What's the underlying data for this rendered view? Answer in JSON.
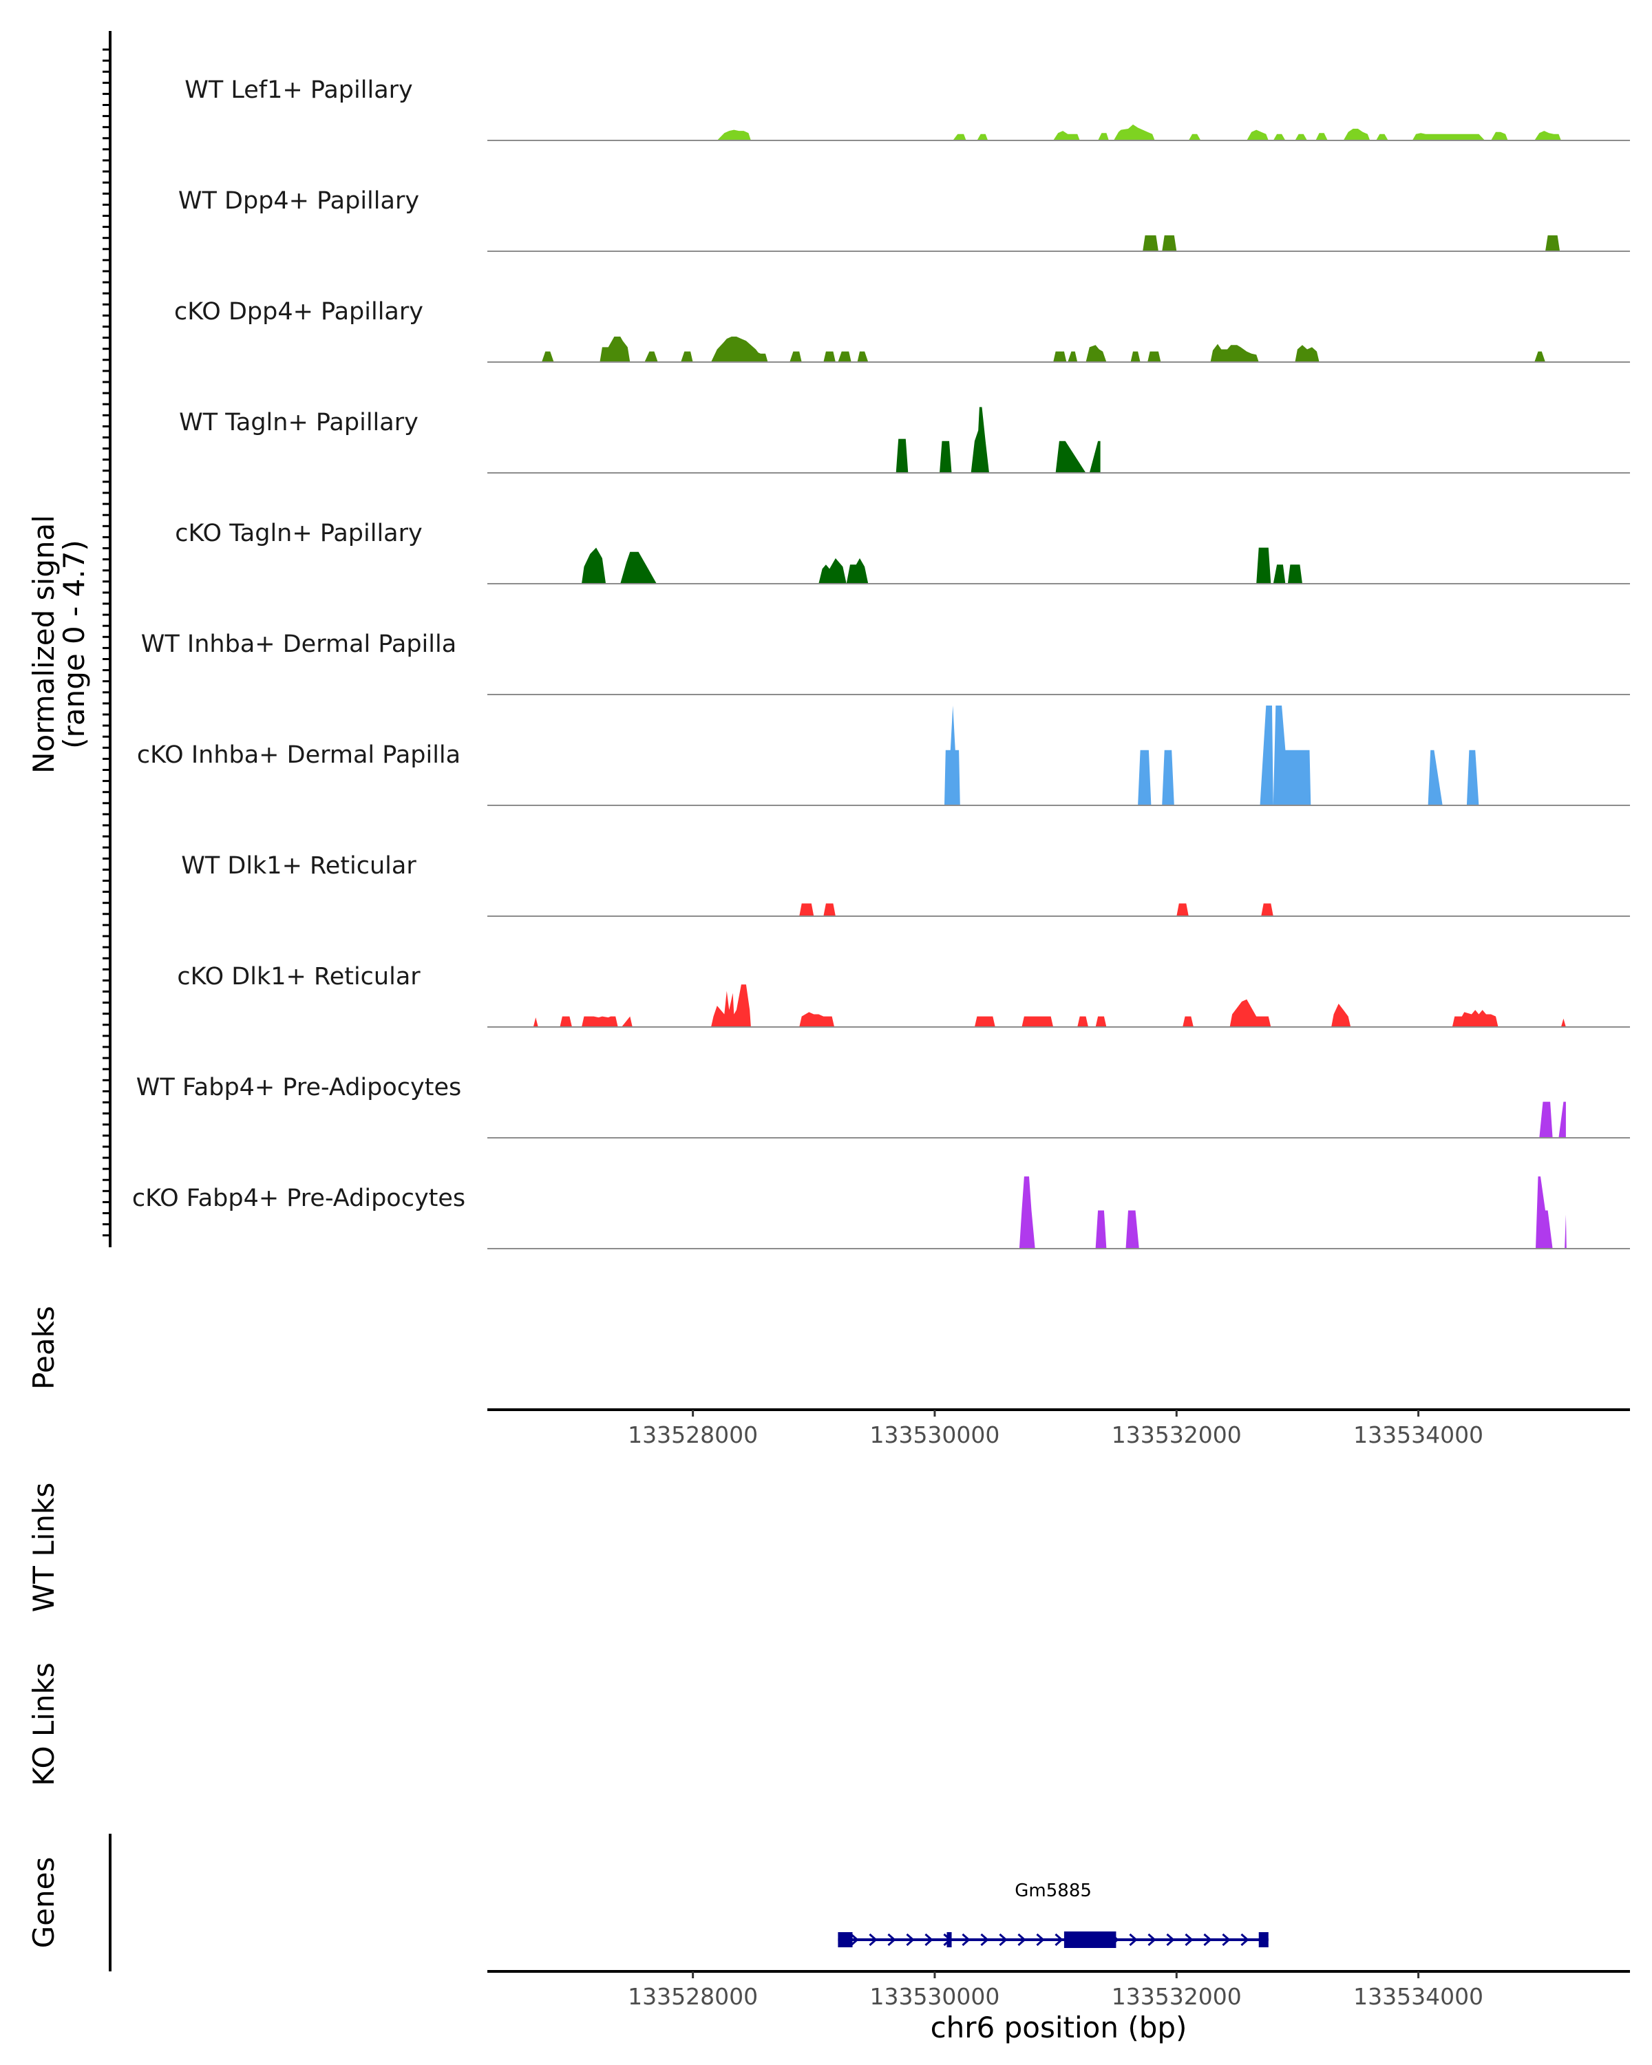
{
  "chart_data": {
    "type": "area",
    "title": "",
    "region": {
      "chromosome": "chr6",
      "start": 133526300,
      "end": 133535750
    },
    "coverage": {
      "ylabel": "Normalized signal",
      "ylabel_range": "(range 0 - 4.7)",
      "ylim": [
        0,
        4.7
      ],
      "tracks": [
        {
          "name": "WT Lef1+ Papillary",
          "color": "#7ED321",
          "x": [
            133528200,
            133528260,
            133528300,
            133528340,
            133528380,
            133528420,
            133528460,
            133528480,
            133530150,
            133530190,
            133530240,
            133530260,
            133530350,
            133530380,
            133530420,
            133530440,
            133530980,
            133531020,
            133531060,
            133531100,
            133531140,
            133531180,
            133531200,
            133531350,
            133531380,
            133531420,
            133531440,
            133531480,
            133531520,
            133531540,
            133531600,
            133531640,
            133531680,
            133531720,
            133531760,
            133531800,
            133531820,
            133532100,
            133532130,
            133532170,
            133532200,
            133532580,
            133532620,
            133532660,
            133532700,
            133532740,
            133532760,
            133532800,
            133532830,
            133532870,
            133532900,
            133532980,
            133533010,
            133533050,
            133533080,
            133533150,
            133533180,
            133533220,
            133533250,
            133533380,
            133533420,
            133533460,
            133533500,
            133533540,
            133533580,
            133533600,
            133533650,
            133533680,
            133533720,
            133533750,
            133533950,
            133533980,
            133534020,
            133534060,
            133534100,
            133534140,
            133534180,
            133534220,
            133534260,
            133534300,
            133534340,
            133534380,
            133534420,
            133534460,
            133534500,
            133534550,
            133534600,
            133534640,
            133534680,
            133534720,
            133534740,
            133534960,
            133535000,
            133535040,
            133535080,
            133535120,
            133535160,
            133535180
          ],
          "y": [
            0,
            0.35,
            0.45,
            0.5,
            0.45,
            0.45,
            0.35,
            0,
            0,
            0.3,
            0.3,
            0,
            0,
            0.3,
            0.3,
            0,
            0,
            0.35,
            0.45,
            0.3,
            0.3,
            0.3,
            0,
            0,
            0.35,
            0.35,
            0,
            0,
            0.4,
            0.5,
            0.55,
            0.75,
            0.6,
            0.5,
            0.4,
            0.3,
            0,
            0,
            0.3,
            0.3,
            0,
            0,
            0.4,
            0.5,
            0.4,
            0.3,
            0,
            0,
            0.3,
            0.3,
            0,
            0,
            0.3,
            0.3,
            0,
            0,
            0.35,
            0.35,
            0,
            0,
            0.4,
            0.55,
            0.55,
            0.4,
            0.3,
            0,
            0,
            0.3,
            0.3,
            0,
            0,
            0.3,
            0.35,
            0.3,
            0.3,
            0.3,
            0.3,
            0.3,
            0.3,
            0.3,
            0.3,
            0.3,
            0.3,
            0.3,
            0.3,
            0,
            0,
            0.4,
            0.4,
            0.3,
            0,
            0,
            0.35,
            0.45,
            0.35,
            0.3,
            0.3,
            0
          ]
        },
        {
          "name": "WT Dpp4+ Papillary",
          "color": "#4B8A08",
          "x": [
            133531720,
            133531740,
            133531830,
            133531850,
            133531880,
            133531900,
            133531980,
            133532000,
            133535050,
            133535070,
            133535150,
            133535170
          ],
          "y": [
            0,
            0.75,
            0.75,
            0,
            0,
            0.75,
            0.75,
            0,
            0,
            0.75,
            0.75,
            0
          ]
        },
        {
          "name": "cKO Dpp4+ Papillary",
          "color": "#4B8A08",
          "x": [
            133526750,
            133526780,
            133526820,
            133526850,
            133527230,
            133527250,
            133527300,
            133527350,
            133527400,
            133527420,
            133527460,
            133527480,
            133527600,
            133527640,
            133527680,
            133527710,
            133527900,
            133527930,
            133527980,
            133528000,
            133528150,
            133528200,
            133528250,
            133528280,
            133528320,
            133528360,
            133528400,
            133528440,
            133528480,
            133528520,
            133528540,
            133528560,
            133528600,
            133528620,
            133528800,
            133528830,
            133528880,
            133528900,
            133529080,
            133529100,
            133529160,
            133529180,
            133529200,
            133529230,
            133529290,
            133529310,
            133529360,
            133529380,
            133529420,
            133529450,
            133530980,
            133531000,
            133531070,
            133531090,
            133531100,
            133531130,
            133531160,
            133531180,
            133531250,
            133531280,
            133531330,
            133531360,
            133531390,
            133531420,
            133531620,
            133531640,
            133531680,
            133531700,
            133531760,
            133531780,
            133531850,
            133531870,
            133532280,
            133532300,
            133532340,
            133532370,
            133532420,
            133532450,
            133532500,
            133532530,
            133532580,
            133532620,
            133532660,
            133532680,
            133532980,
            133533000,
            133533040,
            133533080,
            133533120,
            133533160,
            133533180,
            133534960,
            133534990,
            133535020,
            133535050
          ],
          "y": [
            0,
            0.5,
            0.5,
            0,
            0,
            0.7,
            0.7,
            1.2,
            1.2,
            1,
            0.7,
            0,
            0,
            0.5,
            0.5,
            0,
            0,
            0.5,
            0.5,
            0,
            0,
            0.6,
            0.9,
            1.1,
            1.2,
            1.2,
            1.1,
            1,
            0.8,
            0.6,
            0.45,
            0.4,
            0.4,
            0,
            0,
            0.5,
            0.5,
            0,
            0,
            0.5,
            0.5,
            0,
            0,
            0.5,
            0.5,
            0,
            0,
            0.5,
            0.5,
            0,
            0,
            0.5,
            0.5,
            0,
            0,
            0.5,
            0.5,
            0,
            0,
            0.7,
            0.8,
            0.6,
            0.5,
            0,
            0,
            0.5,
            0.5,
            0,
            0,
            0.5,
            0.5,
            0,
            0,
            0.55,
            0.85,
            0.6,
            0.6,
            0.8,
            0.8,
            0.7,
            0.5,
            0.4,
            0.35,
            0,
            0,
            0.6,
            0.8,
            0.6,
            0.7,
            0.5,
            0,
            0,
            0.5,
            0.5,
            0
          ]
        },
        {
          "name": "WT Tagln+ Papillary",
          "color": "#006400",
          "x": [
            133529680,
            133529700,
            133529760,
            133529780,
            133530040,
            133530060,
            133530120,
            133530140,
            133530300,
            133530330,
            133530360,
            133530370,
            133530390,
            133530420,
            133530450,
            133531000,
            133531030,
            133531080,
            133531250,
            133531280,
            133531350,
            133531370
          ],
          "y": [
            0,
            1.6,
            1.6,
            0,
            0,
            1.5,
            1.5,
            0,
            0,
            1.5,
            2,
            3.1,
            3.1,
            1.5,
            0,
            0,
            1.5,
            1.5,
            0,
            0,
            1.5,
            1.5
          ]
        },
        {
          "name": "cKO Tagln+ Papillary",
          "color": "#006400",
          "x": [
            133527080,
            133527100,
            133527150,
            133527200,
            133527250,
            133527280,
            133527400,
            133527450,
            133527480,
            133527550,
            133527620,
            133527700,
            133529040,
            133529070,
            133529100,
            133529130,
            133529180,
            133529240,
            133529270,
            133529300,
            133529350,
            133529380,
            133529420,
            133529450,
            133532660,
            133532680,
            133532760,
            133532780,
            133532800,
            133532830,
            133532880,
            133532900,
            133532920,
            133532940,
            133533020,
            133533040
          ],
          "y": [
            0,
            0.8,
            1.4,
            1.7,
            1.2,
            0,
            0,
            1,
            1.5,
            1.5,
            0.8,
            0,
            0,
            0.7,
            0.9,
            0.7,
            1.2,
            0.8,
            0,
            0.9,
            0.9,
            1.2,
            0.8,
            0,
            0,
            1.7,
            1.7,
            0,
            0,
            0.9,
            0.9,
            0,
            0,
            0.9,
            0.9,
            0
          ]
        },
        {
          "name": "WT Inhba+ Dermal Papilla",
          "color": "#56A5EC",
          "x": [],
          "y": []
        },
        {
          "name": "cKO Inhba+ Dermal Papilla",
          "color": "#56A5EC",
          "x": [
            133530080,
            133530090,
            133530130,
            133530150,
            133530170,
            133530200,
            133530210,
            133531680,
            133531700,
            133531770,
            133531790,
            133531880,
            133531900,
            133531960,
            133531980,
            133532690,
            133532740,
            133532790,
            133532800,
            133532820,
            133532870,
            133532900,
            133532910,
            133533100,
            133533110,
            133534080,
            133534100,
            133534130,
            133534200,
            133534400,
            133534420,
            133534470,
            133534500
          ],
          "y": [
            0,
            2.6,
            2.6,
            4.7,
            2.6,
            2.6,
            0,
            0,
            2.6,
            2.6,
            0,
            0,
            2.6,
            2.6,
            0,
            0,
            4.7,
            4.7,
            0,
            4.7,
            4.7,
            2.6,
            2.6,
            2.6,
            0,
            0,
            2.6,
            2.6,
            0,
            0,
            2.6,
            2.6,
            0
          ]
        },
        {
          "name": "WT Dlk1+ Reticular",
          "color": "#FF3030",
          "x": [
            133528880,
            133528900,
            133528980,
            133529000,
            133529080,
            133529100,
            133529160,
            133529180,
            133532000,
            133532020,
            133532080,
            133532100,
            133532700,
            133532720,
            133532780,
            133532800
          ],
          "y": [
            0,
            0.6,
            0.6,
            0,
            0,
            0.6,
            0.6,
            0,
            0,
            0.6,
            0.6,
            0,
            0,
            0.6,
            0.6,
            0
          ]
        },
        {
          "name": "cKO Dlk1+ Reticular",
          "color": "#FF3030",
          "x": [
            133526680,
            133526700,
            133526720,
            133526900,
            133526920,
            133526980,
            133527000,
            133527080,
            133527100,
            133527180,
            133527220,
            133527250,
            133527300,
            133527320,
            133527360,
            133527380,
            133527410,
            133527480,
            133527500,
            133528150,
            133528170,
            133528200,
            133528230,
            133528260,
            133528280,
            133528300,
            133528330,
            133528340,
            133528360,
            133528400,
            133528440,
            133528470,
            133528480,
            133528880,
            133528900,
            133528960,
            133529000,
            133529040,
            133529080,
            133529100,
            133529150,
            133529170,
            133530330,
            133530350,
            133530480,
            133530500,
            133530720,
            133530740,
            133530960,
            133530980,
            133531180,
            133531200,
            133531250,
            133531270,
            133531330,
            133531350,
            133531400,
            133531420,
            133532050,
            133532070,
            133532120,
            133532140,
            133532440,
            133532460,
            133532500,
            133532540,
            133532580,
            133532620,
            133532660,
            133532700,
            133532760,
            133532780,
            133533280,
            133533300,
            133533340,
            133533380,
            133533420,
            133533440,
            133534280,
            133534300,
            133534360,
            133534380,
            133534440,
            133534470,
            133534500,
            133534530,
            133534560,
            133534600,
            133534640,
            133534660,
            133535180,
            133535200,
            133535220
          ],
          "y": [
            0,
            0.45,
            0,
            0,
            0.5,
            0.5,
            0,
            0,
            0.5,
            0.5,
            0.45,
            0.5,
            0.45,
            0.5,
            0.5,
            0,
            0,
            0.5,
            0,
            0,
            0.5,
            1,
            0.8,
            0.6,
            1.7,
            0.8,
            1.6,
            0.6,
            0.8,
            2,
            2,
            0.8,
            0,
            0,
            0.5,
            0.7,
            0.6,
            0.6,
            0.5,
            0.5,
            0.5,
            0,
            0,
            0.5,
            0.5,
            0,
            0,
            0.5,
            0.5,
            0,
            0,
            0.5,
            0.5,
            0,
            0,
            0.5,
            0.5,
            0,
            0,
            0.5,
            0.5,
            0,
            0,
            0.6,
            0.9,
            1.2,
            1.3,
            0.9,
            0.5,
            0.5,
            0.5,
            0,
            0,
            0.6,
            1.1,
            0.8,
            0.5,
            0,
            0,
            0.5,
            0.5,
            0.7,
            0.6,
            0.8,
            0.6,
            0.8,
            0.6,
            0.6,
            0.5,
            0,
            0,
            0.4,
            0
          ]
        },
        {
          "name": "WT Fabp4+ Pre-Adipocytes",
          "color": "#B03AED",
          "x": [
            133535000,
            133535030,
            133535090,
            133535110,
            133535160,
            133535200,
            133535220
          ],
          "y": [
            0,
            1.7,
            1.7,
            0,
            0,
            1.7,
            1.7
          ]
        },
        {
          "name": "cKO Fabp4+ Pre-Adipocytes",
          "color": "#B03AED",
          "x": [
            133530700,
            133530720,
            133530740,
            133530780,
            133530800,
            133530830,
            133531330,
            133531350,
            133531400,
            133531420,
            133531580,
            133531600,
            133531660,
            133531690,
            133534970,
            133534990,
            133535010,
            133535050,
            133535070,
            133535110,
            133535210,
            133535220,
            133535225
          ],
          "y": [
            0,
            1.8,
            3.4,
            3.4,
            1.8,
            0,
            0,
            1.8,
            1.8,
            0,
            0,
            1.8,
            1.8,
            0,
            0,
            3.4,
            3.4,
            1.8,
            1.8,
            0,
            0,
            1.6,
            0
          ]
        }
      ]
    },
    "panels": {
      "peaks": "Peaks",
      "wt_links": "WT Links",
      "ko_links": "KO Links",
      "genes": "Genes"
    },
    "x_ticks": [
      133528000,
      133530000,
      133532000,
      133534000
    ],
    "x_tick_labels": [
      "133528000",
      "133530000",
      "133532000",
      "133534000"
    ],
    "xlabel": "chr6 position (bp)",
    "gene": {
      "name": "Gm5885",
      "color": "#00008B",
      "strand": "+",
      "start": 133529200,
      "end": 133532760,
      "exons": [
        [
          133529200,
          133529320
        ],
        [
          133530100,
          133530140
        ],
        [
          133531070,
          133531500
        ],
        [
          133532680,
          133532760
        ]
      ],
      "thick_exons": [
        [
          133531070,
          133531500
        ]
      ]
    }
  }
}
